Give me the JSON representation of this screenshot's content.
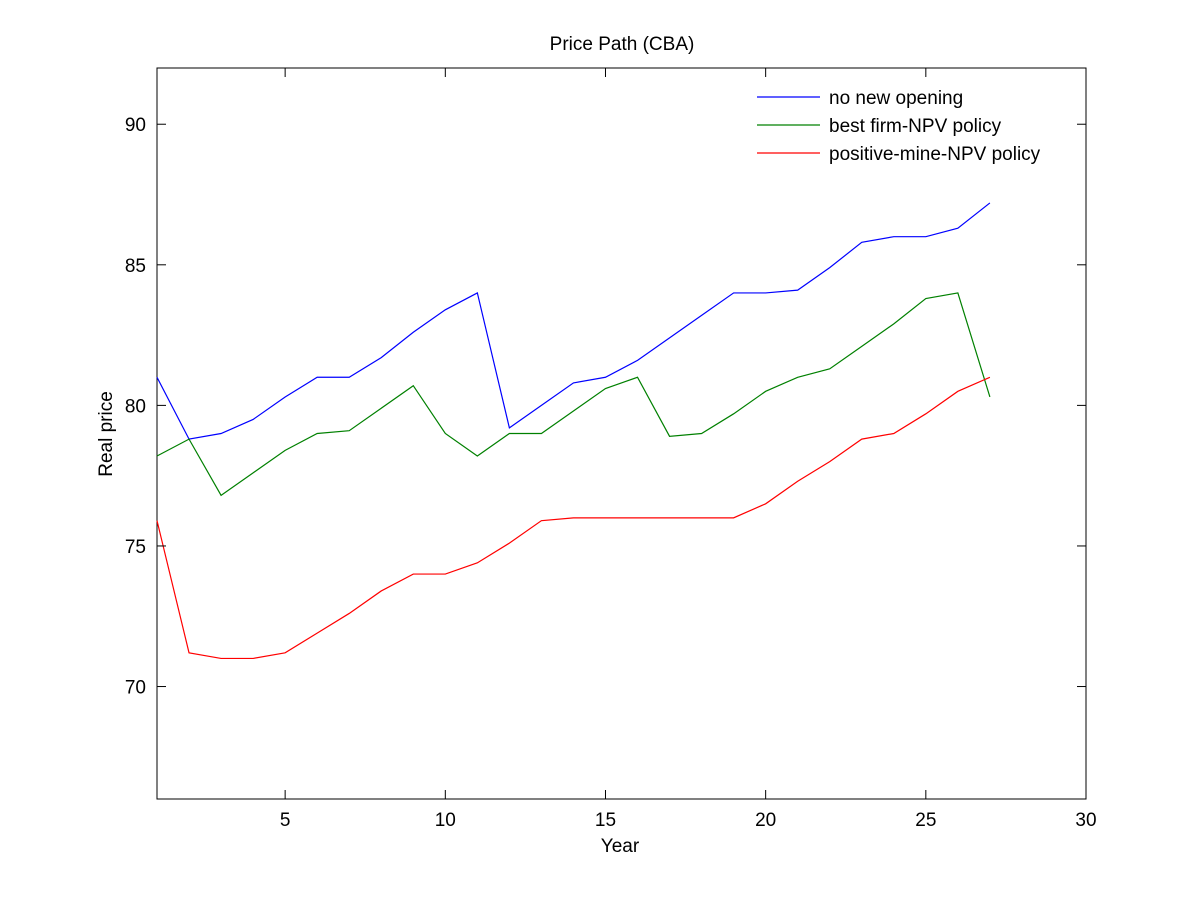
{
  "chart_data": {
    "type": "line",
    "title": "Price Path (CBA)",
    "xlabel": "Year",
    "ylabel": "Real price",
    "xlim": [
      1,
      30
    ],
    "ylim": [
      66,
      92
    ],
    "xticks": [
      5,
      10,
      15,
      20,
      25,
      30
    ],
    "yticks": [
      70,
      75,
      80,
      85,
      90
    ],
    "grid": false,
    "legend_position": "top-right",
    "x": [
      1,
      2,
      3,
      4,
      5,
      6,
      7,
      8,
      9,
      10,
      11,
      12,
      13,
      14,
      15,
      16,
      17,
      18,
      19,
      20,
      21,
      22,
      23,
      24,
      25,
      26,
      27
    ],
    "series": [
      {
        "name": "no new opening",
        "color": "#0000ff",
        "values": [
          81.0,
          78.8,
          79.0,
          79.5,
          80.3,
          81.0,
          81.0,
          81.7,
          82.6,
          83.4,
          84.0,
          79.2,
          80.0,
          80.8,
          81.0,
          81.6,
          82.4,
          83.2,
          84.0,
          84.0,
          84.1,
          84.9,
          85.8,
          86.0,
          86.0,
          86.3,
          87.2
        ]
      },
      {
        "name": "best firm-NPV policy",
        "color": "#008000",
        "values": [
          78.2,
          78.8,
          76.8,
          77.6,
          78.4,
          79.0,
          79.1,
          79.9,
          80.7,
          79.0,
          78.2,
          79.0,
          79.0,
          79.8,
          80.6,
          81.0,
          78.9,
          79.0,
          79.7,
          80.5,
          81.0,
          81.3,
          82.1,
          82.9,
          83.8,
          84.0,
          80.3
        ]
      },
      {
        "name": "positive-mine-NPV policy",
        "color": "#ff0000",
        "values": [
          75.9,
          71.2,
          71.0,
          71.0,
          71.2,
          71.9,
          72.6,
          73.4,
          74.0,
          74.0,
          74.4,
          75.1,
          75.9,
          76.0,
          76.0,
          76.0,
          76.0,
          76.0,
          76.0,
          76.5,
          77.3,
          78.0,
          78.8,
          79.0,
          79.7,
          80.5,
          81.0
        ]
      }
    ]
  }
}
